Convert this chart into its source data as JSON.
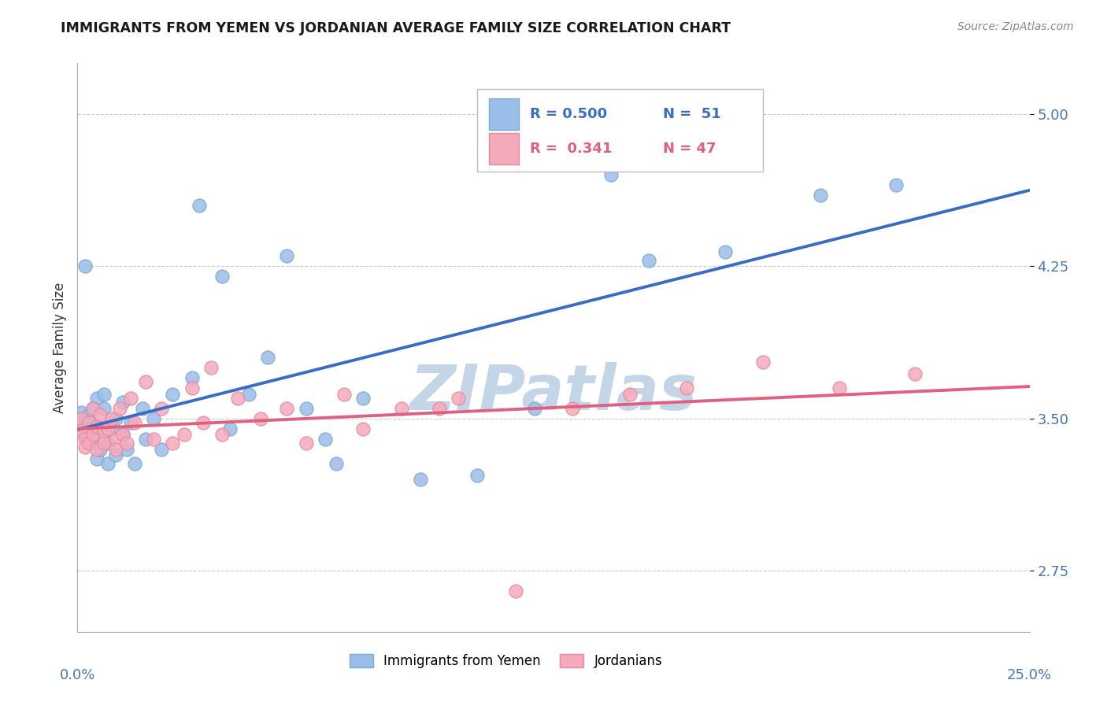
{
  "title": "IMMIGRANTS FROM YEMEN VS JORDANIAN AVERAGE FAMILY SIZE CORRELATION CHART",
  "source": "Source: ZipAtlas.com",
  "ylabel": "Average Family Size",
  "yticks": [
    2.75,
    3.5,
    4.25,
    5.0
  ],
  "xlim": [
    0.0,
    0.25
  ],
  "ylim": [
    2.45,
    5.25
  ],
  "legend_blue_r": "R = 0.500",
  "legend_blue_n": "N =  51",
  "legend_pink_r": "R =  0.341",
  "legend_pink_n": "N = 47",
  "blue_scatter": [
    [
      0.001,
      3.5
    ],
    [
      0.001,
      3.48
    ],
    [
      0.001,
      3.53
    ],
    [
      0.002,
      3.42
    ],
    [
      0.002,
      3.46
    ],
    [
      0.002,
      4.25
    ],
    [
      0.003,
      3.52
    ],
    [
      0.003,
      3.44
    ],
    [
      0.003,
      3.38
    ],
    [
      0.004,
      3.55
    ],
    [
      0.004,
      3.4
    ],
    [
      0.005,
      3.6
    ],
    [
      0.005,
      3.3
    ],
    [
      0.006,
      3.45
    ],
    [
      0.006,
      3.35
    ],
    [
      0.007,
      3.62
    ],
    [
      0.007,
      3.55
    ],
    [
      0.008,
      3.38
    ],
    [
      0.008,
      3.28
    ],
    [
      0.009,
      3.45
    ],
    [
      0.01,
      3.5
    ],
    [
      0.01,
      3.32
    ],
    [
      0.012,
      3.58
    ],
    [
      0.012,
      3.42
    ],
    [
      0.013,
      3.35
    ],
    [
      0.014,
      3.48
    ],
    [
      0.015,
      3.28
    ],
    [
      0.017,
      3.55
    ],
    [
      0.018,
      3.4
    ],
    [
      0.02,
      3.5
    ],
    [
      0.022,
      3.35
    ],
    [
      0.025,
      3.62
    ],
    [
      0.03,
      3.7
    ],
    [
      0.032,
      4.55
    ],
    [
      0.038,
      4.2
    ],
    [
      0.04,
      3.45
    ],
    [
      0.045,
      3.62
    ],
    [
      0.05,
      3.8
    ],
    [
      0.055,
      4.3
    ],
    [
      0.06,
      3.55
    ],
    [
      0.065,
      3.4
    ],
    [
      0.068,
      3.28
    ],
    [
      0.075,
      3.6
    ],
    [
      0.09,
      3.2
    ],
    [
      0.105,
      3.22
    ],
    [
      0.12,
      3.55
    ],
    [
      0.14,
      4.7
    ],
    [
      0.15,
      4.28
    ],
    [
      0.17,
      4.32
    ],
    [
      0.195,
      4.6
    ],
    [
      0.215,
      4.65
    ]
  ],
  "pink_scatter": [
    [
      0.001,
      3.5
    ],
    [
      0.001,
      3.44
    ],
    [
      0.002,
      3.4
    ],
    [
      0.002,
      3.36
    ],
    [
      0.003,
      3.48
    ],
    [
      0.003,
      3.38
    ],
    [
      0.004,
      3.55
    ],
    [
      0.004,
      3.42
    ],
    [
      0.005,
      3.35
    ],
    [
      0.005,
      3.46
    ],
    [
      0.006,
      3.52
    ],
    [
      0.007,
      3.38
    ],
    [
      0.007,
      3.44
    ],
    [
      0.008,
      3.45
    ],
    [
      0.009,
      3.5
    ],
    [
      0.01,
      3.4
    ],
    [
      0.01,
      3.35
    ],
    [
      0.011,
      3.55
    ],
    [
      0.012,
      3.42
    ],
    [
      0.013,
      3.38
    ],
    [
      0.014,
      3.6
    ],
    [
      0.015,
      3.48
    ],
    [
      0.018,
      3.68
    ],
    [
      0.02,
      3.4
    ],
    [
      0.022,
      3.55
    ],
    [
      0.025,
      3.38
    ],
    [
      0.028,
      3.42
    ],
    [
      0.03,
      3.65
    ],
    [
      0.033,
      3.48
    ],
    [
      0.035,
      3.75
    ],
    [
      0.038,
      3.42
    ],
    [
      0.042,
      3.6
    ],
    [
      0.048,
      3.5
    ],
    [
      0.055,
      3.55
    ],
    [
      0.06,
      3.38
    ],
    [
      0.07,
      3.62
    ],
    [
      0.075,
      3.45
    ],
    [
      0.085,
      3.55
    ],
    [
      0.095,
      3.55
    ],
    [
      0.1,
      3.6
    ],
    [
      0.115,
      2.65
    ],
    [
      0.13,
      3.55
    ],
    [
      0.145,
      3.62
    ],
    [
      0.16,
      3.65
    ],
    [
      0.18,
      3.78
    ],
    [
      0.2,
      3.65
    ],
    [
      0.22,
      3.72
    ]
  ],
  "blue_color": "#9BBEE8",
  "blue_edge_color": "#7AAAD4",
  "pink_color": "#F4AABB",
  "pink_edge_color": "#E888A0",
  "blue_line_color": "#3B6CC5",
  "pink_line_color": "#E06080",
  "grid_color": "#CCCCCC",
  "watermark": "ZIPatlas",
  "watermark_color": "#C5D5E8",
  "title_color": "#1a1a1a",
  "source_color": "#888888",
  "axis_label_color": "#4477BB",
  "ylabel_color": "#333333"
}
